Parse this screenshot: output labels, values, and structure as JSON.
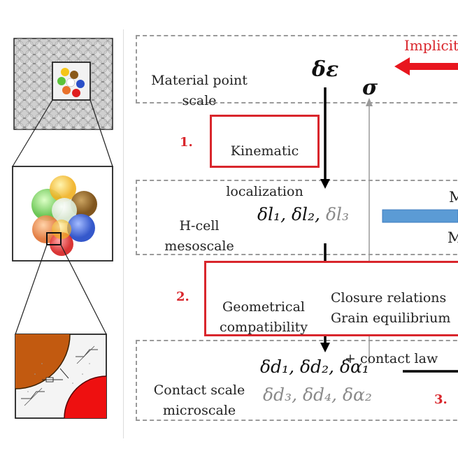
{
  "scales": {
    "material": [
      "Material point",
      "scale"
    ],
    "hcell": [
      "H-cell",
      "mesoscale"
    ],
    "contact": [
      "Contact scale",
      "microscale"
    ]
  },
  "steps": {
    "s1": "1.",
    "s2": "2.",
    "s3": "3."
  },
  "boxes": {
    "kinematic": [
      "Kinematic",
      "localization"
    ],
    "geometrical": [
      "Geometrical",
      "compatibility"
    ],
    "closure": [
      "Closure relations",
      "Grain equilibrium",
      "+ contact law"
    ]
  },
  "implicit_label": "Implicit",
  "symbols": {
    "strain": "δε",
    "stress": "σ",
    "hcell_black": "δl₁, δl₂, ",
    "hcell_grey": "δl₃",
    "contact_black": "δd₁, δd₂, δα₁",
    "contact_grey": "δd₃, δd₄, δα₂"
  },
  "fragment_m_top": "M",
  "fragment_m_bottom": "M",
  "colors": {
    "red": "#d9262c",
    "bar_blue": "#5b9bd5",
    "grey_text": "#8a8a8a",
    "dash_grey": "#9a9a9a"
  }
}
